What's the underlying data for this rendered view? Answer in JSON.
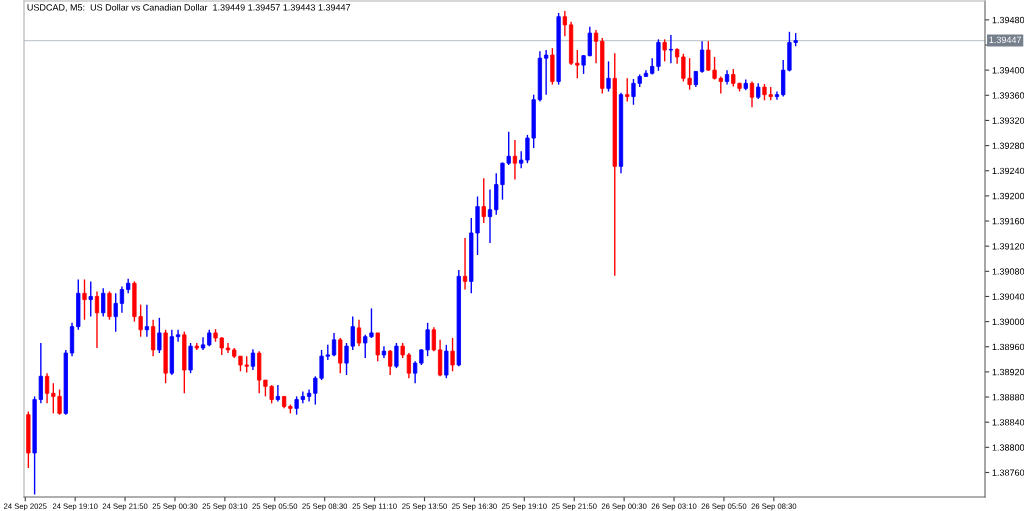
{
  "chart_data": {
    "type": "candlestick",
    "title": "USDCAD, M5:  US Dollar vs Canadian Dollar  1.39449 1.39457 1.39443 1.39447",
    "x": [
      "2025-09-24T16:40",
      "2025-09-24T17:00",
      "2025-09-24T17:20",
      "2025-09-24T17:40",
      "2025-09-24T18:00",
      "2025-09-24T18:20",
      "2025-09-24T18:40",
      "2025-09-24T19:00",
      "2025-09-24T19:20",
      "2025-09-24T19:40",
      "2025-09-24T20:00",
      "2025-09-24T20:20",
      "2025-09-24T20:40",
      "2025-09-24T21:00",
      "2025-09-24T21:20",
      "2025-09-24T21:40",
      "2025-09-24T22:00",
      "2025-09-24T22:20",
      "2025-09-24T22:40",
      "2025-09-24T23:00",
      "2025-09-24T23:20",
      "2025-09-24T23:40",
      "2025-09-25T00:00",
      "2025-09-25T00:20",
      "2025-09-25T00:40",
      "2025-09-25T01:00",
      "2025-09-25T01:20",
      "2025-09-25T01:40",
      "2025-09-25T02:00",
      "2025-09-25T02:20",
      "2025-09-25T02:40",
      "2025-09-25T03:00",
      "2025-09-25T03:20",
      "2025-09-25T03:40",
      "2025-09-25T04:00",
      "2025-09-25T04:20",
      "2025-09-25T04:40",
      "2025-09-25T05:00",
      "2025-09-25T05:20",
      "2025-09-25T05:40",
      "2025-09-25T06:00",
      "2025-09-25T06:20",
      "2025-09-25T06:40",
      "2025-09-25T07:00",
      "2025-09-25T07:20",
      "2025-09-25T07:40",
      "2025-09-25T08:00",
      "2025-09-25T08:20",
      "2025-09-25T08:40",
      "2025-09-25T09:00",
      "2025-09-25T09:20",
      "2025-09-25T09:40",
      "2025-09-25T10:00",
      "2025-09-25T10:20",
      "2025-09-25T10:40",
      "2025-09-25T11:00",
      "2025-09-25T11:20",
      "2025-09-25T11:40",
      "2025-09-25T12:00",
      "2025-09-25T12:20",
      "2025-09-25T12:40",
      "2025-09-25T13:00",
      "2025-09-25T13:20",
      "2025-09-25T13:40",
      "2025-09-25T14:00",
      "2025-09-25T14:20",
      "2025-09-25T14:40",
      "2025-09-25T15:00",
      "2025-09-25T15:20",
      "2025-09-25T15:40",
      "2025-09-25T16:00",
      "2025-09-25T16:20",
      "2025-09-25T16:40",
      "2025-09-25T17:00",
      "2025-09-25T17:20",
      "2025-09-25T17:40",
      "2025-09-25T18:00",
      "2025-09-25T18:20",
      "2025-09-25T18:40",
      "2025-09-25T19:00",
      "2025-09-25T19:20",
      "2025-09-25T19:40",
      "2025-09-25T20:00",
      "2025-09-25T20:20",
      "2025-09-25T20:40",
      "2025-09-25T21:00",
      "2025-09-25T21:20",
      "2025-09-25T21:40",
      "2025-09-25T22:00",
      "2025-09-25T22:20",
      "2025-09-25T22:40",
      "2025-09-25T23:00",
      "2025-09-25T23:20",
      "2025-09-25T23:40",
      "2025-09-26T00:00",
      "2025-09-26T00:20",
      "2025-09-26T00:40",
      "2025-09-26T01:00",
      "2025-09-26T01:20",
      "2025-09-26T01:40",
      "2025-09-26T02:00",
      "2025-09-26T02:20",
      "2025-09-26T02:40",
      "2025-09-26T03:00",
      "2025-09-26T03:20",
      "2025-09-26T03:40",
      "2025-09-26T04:00",
      "2025-09-26T04:20",
      "2025-09-26T04:40",
      "2025-09-26T05:00",
      "2025-09-26T05:20",
      "2025-09-26T05:40",
      "2025-09-26T06:00",
      "2025-09-26T06:20",
      "2025-09-26T06:40",
      "2025-09-26T07:00",
      "2025-09-26T07:20",
      "2025-09-26T07:40",
      "2025-09-26T08:00",
      "2025-09-26T08:20",
      "2025-09-26T08:40",
      "2025-09-26T09:00",
      "2025-09-26T09:20",
      "2025-09-26T09:40"
    ],
    "ohlc": [
      [
        1.38852,
        1.38857,
        1.38767,
        1.38791
      ],
      [
        1.38791,
        1.38881,
        1.38725,
        1.38876
      ],
      [
        1.38876,
        1.38966,
        1.3887,
        1.38913
      ],
      [
        1.38913,
        1.38918,
        1.3887,
        1.38886
      ],
      [
        1.38886,
        1.38902,
        1.38854,
        1.38881
      ],
      [
        1.38881,
        1.38892,
        1.38852,
        1.38854
      ],
      [
        1.38854,
        1.38955,
        1.38852,
        1.3895
      ],
      [
        1.3895,
        1.38998,
        1.38945,
        1.38992
      ],
      [
        1.38992,
        1.39067,
        1.38987,
        1.39045
      ],
      [
        1.39045,
        1.39067,
        1.39003,
        1.39035
      ],
      [
        1.39035,
        1.39064,
        1.39008,
        1.3904
      ],
      [
        1.3904,
        1.39048,
        1.38958,
        1.39014
      ],
      [
        1.39014,
        1.39053,
        1.39008,
        1.39045
      ],
      [
        1.39045,
        1.39048,
        1.39003,
        1.39008
      ],
      [
        1.39008,
        1.39045,
        1.38984,
        1.39029
      ],
      [
        1.39029,
        1.39056,
        1.39014,
        1.39051
      ],
      [
        1.39051,
        1.39068,
        1.39045,
        1.39061
      ],
      [
        1.39061,
        1.39064,
        1.39,
        1.39008
      ],
      [
        1.39008,
        1.39027,
        1.38976,
        1.38987
      ],
      [
        1.38987,
        1.39027,
        1.38976,
        1.38992
      ],
      [
        1.38992,
        1.39003,
        1.38945,
        1.38955
      ],
      [
        1.38955,
        1.39006,
        1.3895,
        1.38982
      ],
      [
        1.38982,
        1.38987,
        1.38902,
        1.38918
      ],
      [
        1.38918,
        1.38987,
        1.38915,
        1.38976
      ],
      [
        1.38976,
        1.38987,
        1.38968,
        1.38979
      ],
      [
        1.38979,
        1.38984,
        1.38886,
        1.38923
      ],
      [
        1.38923,
        1.38966,
        1.38918,
        1.38961
      ],
      [
        1.38961,
        1.38966,
        1.38955,
        1.38958
      ],
      [
        1.38958,
        1.38975,
        1.38955,
        1.38963
      ],
      [
        1.38963,
        1.38987,
        1.38961,
        1.38982
      ],
      [
        1.38982,
        1.38988,
        1.38968,
        1.38974
      ],
      [
        1.38974,
        1.38975,
        1.38947,
        1.38958
      ],
      [
        1.38958,
        1.38966,
        1.3895,
        1.38955
      ],
      [
        1.38955,
        1.38958,
        1.38942,
        1.38945
      ],
      [
        1.38945,
        1.38945,
        1.38921,
        1.38931
      ],
      [
        1.38931,
        1.38945,
        1.38919,
        1.38929
      ],
      [
        1.38929,
        1.38956,
        1.38923,
        1.3895
      ],
      [
        1.3895,
        1.38953,
        1.38886,
        1.38907
      ],
      [
        1.38907,
        1.38907,
        1.38881,
        1.38897
      ],
      [
        1.38897,
        1.38899,
        1.3887,
        1.38876
      ],
      [
        1.38876,
        1.38899,
        1.38873,
        1.38881
      ],
      [
        1.38881,
        1.38881,
        1.38862,
        1.38865
      ],
      [
        1.38865,
        1.38868,
        1.38854,
        1.38862
      ],
      [
        1.38862,
        1.38881,
        1.38852,
        1.38876
      ],
      [
        1.38876,
        1.38889,
        1.3887,
        1.38881
      ],
      [
        1.38881,
        1.38892,
        1.38873,
        1.38886
      ],
      [
        1.38886,
        1.38913,
        1.38868,
        1.3891
      ],
      [
        1.3891,
        1.38955,
        1.38907,
        1.38945
      ],
      [
        1.38945,
        1.38963,
        1.38939,
        1.38947
      ],
      [
        1.38947,
        1.38982,
        1.38945,
        1.38971
      ],
      [
        1.38971,
        1.38974,
        1.38918,
        1.38934
      ],
      [
        1.38934,
        1.38966,
        1.38915,
        1.38961
      ],
      [
        1.38961,
        1.39008,
        1.38955,
        1.38992
      ],
      [
        1.3899,
        1.39003,
        1.38961,
        1.38966
      ],
      [
        1.38966,
        1.38979,
        1.38942,
        1.38976
      ],
      [
        1.38976,
        1.39021,
        1.38974,
        1.38982
      ],
      [
        1.38982,
        1.38982,
        1.38937,
        1.38947
      ],
      [
        1.38947,
        1.38961,
        1.38942,
        1.38953
      ],
      [
        1.38953,
        1.38955,
        1.38915,
        1.38929
      ],
      [
        1.38929,
        1.38966,
        1.38926,
        1.38961
      ],
      [
        1.38961,
        1.38966,
        1.38942,
        1.38947
      ],
      [
        1.38947,
        1.3895,
        1.3891,
        1.38918
      ],
      [
        1.38918,
        1.38937,
        1.38902,
        1.38934
      ],
      [
        1.38934,
        1.38956,
        1.38931,
        1.38955
      ],
      [
        1.38955,
        1.38998,
        1.38945,
        1.38987
      ],
      [
        1.38987,
        1.38991,
        1.38953,
        1.38955
      ],
      [
        1.38955,
        1.38971,
        1.38913,
        1.38915
      ],
      [
        1.38915,
        1.38963,
        1.3891,
        1.38953
      ],
      [
        1.38953,
        1.38974,
        1.38921,
        1.38931
      ],
      [
        1.38931,
        1.39082,
        1.38929,
        1.39072
      ],
      [
        1.39072,
        1.39133,
        1.39051,
        1.39064
      ],
      [
        1.39064,
        1.39165,
        1.39045,
        1.39141
      ],
      [
        1.39141,
        1.39199,
        1.39106,
        1.39183
      ],
      [
        1.39183,
        1.39228,
        1.39157,
        1.39167
      ],
      [
        1.39167,
        1.3921,
        1.39125,
        1.39178
      ],
      [
        1.39178,
        1.39236,
        1.3917,
        1.39218
      ],
      [
        1.39218,
        1.39253,
        1.39194,
        1.39252
      ],
      [
        1.39252,
        1.39302,
        1.39249,
        1.39263
      ],
      [
        1.39263,
        1.39289,
        1.39226,
        1.39252
      ],
      [
        1.39252,
        1.39271,
        1.39244,
        1.39257
      ],
      [
        1.39257,
        1.39297,
        1.39252,
        1.39292
      ],
      [
        1.39292,
        1.39361,
        1.39276,
        1.39353
      ],
      [
        1.39353,
        1.3943,
        1.3935,
        1.39419
      ],
      [
        1.39419,
        1.39432,
        1.39361,
        1.39424
      ],
      [
        1.39424,
        1.39435,
        1.39377,
        1.39382
      ],
      [
        1.39382,
        1.39491,
        1.39377,
        1.39485
      ],
      [
        1.39485,
        1.39494,
        1.39454,
        1.39472
      ],
      [
        1.39472,
        1.39477,
        1.39408,
        1.39411
      ],
      [
        1.39411,
        1.39432,
        1.39387,
        1.39408
      ],
      [
        1.39408,
        1.39424,
        1.39394,
        1.39423
      ],
      [
        1.39423,
        1.39469,
        1.39422,
        1.39459
      ],
      [
        1.39459,
        1.39464,
        1.39411,
        1.39446
      ],
      [
        1.39446,
        1.39451,
        1.39363,
        1.39371
      ],
      [
        1.39371,
        1.39414,
        1.39366,
        1.39387
      ],
      [
        1.39387,
        1.39427,
        1.39073,
        1.39247
      ],
      [
        1.39247,
        1.39364,
        1.39236,
        1.39361
      ],
      [
        1.39361,
        1.39387,
        1.3935,
        1.39358
      ],
      [
        1.39358,
        1.39386,
        1.39345,
        1.39379
      ],
      [
        1.39379,
        1.39393,
        1.39373,
        1.3939
      ],
      [
        1.3939,
        1.394,
        1.39389,
        1.39395
      ],
      [
        1.39395,
        1.39419,
        1.39393,
        1.39406
      ],
      [
        1.39406,
        1.39449,
        1.39399,
        1.39444
      ],
      [
        1.39444,
        1.39449,
        1.39414,
        1.39432
      ],
      [
        1.39432,
        1.39456,
        1.39411,
        1.39433
      ],
      [
        1.39433,
        1.39435,
        1.3941,
        1.39421
      ],
      [
        1.39421,
        1.39426,
        1.39382,
        1.39387
      ],
      [
        1.39387,
        1.39419,
        1.39369,
        1.39377
      ],
      [
        1.39377,
        1.39398,
        1.39373,
        1.39398
      ],
      [
        1.39398,
        1.39446,
        1.39396,
        1.39432
      ],
      [
        1.39432,
        1.39446,
        1.39399,
        1.394
      ],
      [
        1.394,
        1.39421,
        1.39385,
        1.39387
      ],
      [
        1.39387,
        1.3939,
        1.39363,
        1.39382
      ],
      [
        1.39382,
        1.394,
        1.39377,
        1.39393
      ],
      [
        1.39393,
        1.39402,
        1.39374,
        1.39379
      ],
      [
        1.39379,
        1.3938,
        1.39366,
        1.39371
      ],
      [
        1.39371,
        1.39385,
        1.39368,
        1.39379
      ],
      [
        1.39379,
        1.39382,
        1.39341,
        1.39357
      ],
      [
        1.39357,
        1.39379,
        1.39354,
        1.39373
      ],
      [
        1.39373,
        1.39378,
        1.39352,
        1.39361
      ],
      [
        1.39361,
        1.39373,
        1.39352,
        1.39358
      ],
      [
        1.39358,
        1.39366,
        1.39353,
        1.39361
      ],
      [
        1.39361,
        1.39416,
        1.39358,
        1.394
      ],
      [
        1.394,
        1.39461,
        1.39398,
        1.39444
      ],
      [
        1.39444,
        1.39459,
        1.39438,
        1.39447
      ]
    ],
    "colors": [
      "#ff0000",
      "#0000ff",
      "#0000ff",
      "#ff0000",
      "#ff0000",
      "#ff0000",
      "#0000ff",
      "#0000ff",
      "#0000ff",
      "#ff0000",
      "#0000ff",
      "#ff0000",
      "#0000ff",
      "#ff0000",
      "#0000ff",
      "#0000ff",
      "#0000ff",
      "#ff0000",
      "#ff0000",
      "#0000ff",
      "#ff0000",
      "#0000ff",
      "#ff0000",
      "#0000ff",
      "#0000ff",
      "#ff0000",
      "#0000ff",
      "#ff0000",
      "#0000ff",
      "#0000ff",
      "#ff0000",
      "#ff0000",
      "#ff0000",
      "#ff0000",
      "#ff0000",
      "#ff0000",
      "#0000ff",
      "#ff0000",
      "#ff0000",
      "#ff0000",
      "#0000ff",
      "#ff0000",
      "#ff0000",
      "#0000ff",
      "#0000ff",
      "#0000ff",
      "#0000ff",
      "#0000ff",
      "#0000ff",
      "#0000ff",
      "#ff0000",
      "#0000ff",
      "#0000ff",
      "#ff0000",
      "#0000ff",
      "#0000ff",
      "#ff0000",
      "#0000ff",
      "#ff0000",
      "#0000ff",
      "#ff0000",
      "#ff0000",
      "#0000ff",
      "#0000ff",
      "#0000ff",
      "#ff0000",
      "#ff0000",
      "#0000ff",
      "#ff0000",
      "#0000ff",
      "#ff0000",
      "#0000ff",
      "#0000ff",
      "#ff0000",
      "#0000ff",
      "#0000ff",
      "#0000ff",
      "#0000ff",
      "#ff0000",
      "#0000ff",
      "#0000ff",
      "#0000ff",
      "#0000ff",
      "#0000ff",
      "#ff0000",
      "#0000ff",
      "#ff0000",
      "#ff0000",
      "#ff0000",
      "#0000ff",
      "#0000ff",
      "#ff0000",
      "#ff0000",
      "#0000ff",
      "#ff0000",
      "#0000ff",
      "#ff0000",
      "#0000ff",
      "#0000ff",
      "#0000ff",
      "#0000ff",
      "#0000ff",
      "#ff0000",
      "#0000ff",
      "#ff0000",
      "#ff0000",
      "#ff0000",
      "#0000ff",
      "#0000ff",
      "#ff0000",
      "#ff0000",
      "#ff0000",
      "#0000ff",
      "#ff0000",
      "#ff0000",
      "#0000ff",
      "#ff0000",
      "#0000ff",
      "#ff0000",
      "#ff0000",
      "#0000ff",
      "#0000ff",
      "#0000ff",
      "#0000ff"
    ],
    "xlim": [
      "2025-09-24T16:26",
      "2025-09-26T19:47"
    ],
    "ylim": [
      1.38721,
      1.3951
    ],
    "xticks": [
      {
        "value": "2025-09-24T16:30",
        "label": "24 Sep 2025"
      },
      {
        "value": "2025-09-24T19:10",
        "label": "24 Sep 19:10"
      },
      {
        "value": "2025-09-24T21:50",
        "label": "24 Sep 21:50"
      },
      {
        "value": "2025-09-25T00:30",
        "label": "25 Sep 00:30"
      },
      {
        "value": "2025-09-25T03:10",
        "label": "25 Sep 03:10"
      },
      {
        "value": "2025-09-25T05:50",
        "label": "25 Sep 05:50"
      },
      {
        "value": "2025-09-25T08:30",
        "label": "25 Sep 08:30"
      },
      {
        "value": "2025-09-25T11:10",
        "label": "25 Sep 11:10"
      },
      {
        "value": "2025-09-25T13:50",
        "label": "25 Sep 13:50"
      },
      {
        "value": "2025-09-25T16:30",
        "label": "25 Sep 16:30"
      },
      {
        "value": "2025-09-25T19:10",
        "label": "25 Sep 19:10"
      },
      {
        "value": "2025-09-25T21:50",
        "label": "25 Sep 21:50"
      },
      {
        "value": "2025-09-26T00:30",
        "label": "26 Sep 00:30"
      },
      {
        "value": "2025-09-26T03:10",
        "label": "26 Sep 03:10"
      },
      {
        "value": "2025-09-26T05:50",
        "label": "26 Sep 05:50"
      },
      {
        "value": "2025-09-26T08:30",
        "label": "26 Sep 08:30"
      }
    ],
    "yticks": [
      {
        "value": 1.3876,
        "label": "1.38760"
      },
      {
        "value": 1.388,
        "label": "1.38800"
      },
      {
        "value": 1.3884,
        "label": "1.38840"
      },
      {
        "value": 1.3888,
        "label": "1.38880"
      },
      {
        "value": 1.3892,
        "label": "1.38920"
      },
      {
        "value": 1.3896,
        "label": "1.38960"
      },
      {
        "value": 1.39,
        "label": "1.39000"
      },
      {
        "value": 1.3904,
        "label": "1.39040"
      },
      {
        "value": 1.3908,
        "label": "1.39080"
      },
      {
        "value": 1.3912,
        "label": "1.39120"
      },
      {
        "value": 1.3916,
        "label": "1.39160"
      },
      {
        "value": 1.392,
        "label": "1.39200"
      },
      {
        "value": 1.3924,
        "label": "1.39240"
      },
      {
        "value": 1.3928,
        "label": "1.39280"
      },
      {
        "value": 1.3932,
        "label": "1.39320"
      },
      {
        "value": 1.3936,
        "label": "1.39360"
      },
      {
        "value": 1.394,
        "label": "1.39400"
      },
      {
        "value": 1.3944,
        "label": null
      },
      {
        "value": 1.3948,
        "label": "1.39480"
      }
    ],
    "ref_lines": [
      {
        "axis": "y",
        "value": 1.39447,
        "label": "1.39447",
        "color": "#c4cad0"
      }
    ]
  }
}
